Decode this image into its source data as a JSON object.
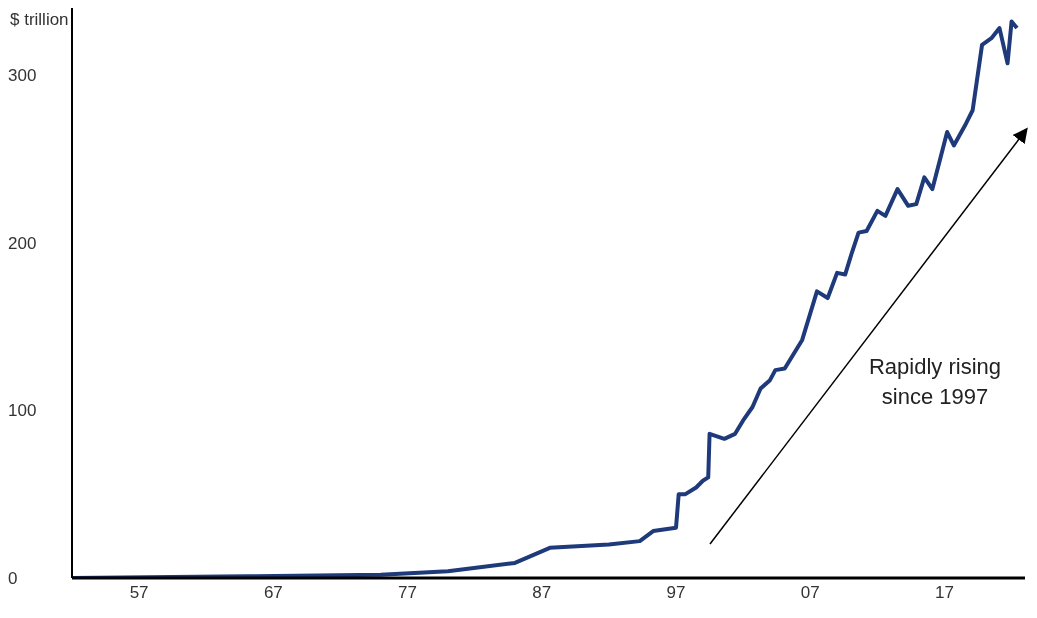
{
  "chart_data": {
    "type": "line",
    "ylabel": "$ trillion",
    "x": [
      1952,
      1965,
      1975,
      1980,
      1985,
      1987.6,
      1992,
      1994.3,
      1995.3,
      1997,
      1997.2,
      1997.7,
      1998.5,
      1999,
      1999.4,
      1999.5,
      2000.6,
      2001.4,
      2002,
      2002.7,
      2003.3,
      2004,
      2004.4,
      2005.1,
      2006.4,
      2007.5,
      2008.3,
      2009,
      2009.6,
      2010.1,
      2010.6,
      2011.2,
      2012,
      2012.6,
      2013.5,
      2014.3,
      2014.9,
      2015.5,
      2016.1,
      2017.2,
      2017.7,
      2018.6,
      2019.1,
      2019.8,
      2020.5,
      2021.1,
      2021.7,
      2022,
      2022.4
    ],
    "series": [
      {
        "color": "#1f3a7a",
        "values": [
          0,
          1,
          2,
          4,
          9,
          18,
          20,
          22,
          28,
          30,
          50,
          50,
          54,
          58,
          60,
          86,
          83,
          86,
          94,
          102,
          113,
          118,
          124,
          125,
          142,
          171,
          167,
          182,
          181,
          194,
          206,
          207,
          219,
          216,
          232,
          222,
          223,
          239,
          232,
          266,
          258,
          271,
          279,
          318,
          322,
          328,
          307,
          332,
          328
        ]
      }
    ],
    "xlim": [
      1952,
      2023
    ],
    "xticks": [
      {
        "value": 1957,
        "label": "57"
      },
      {
        "value": 1967,
        "label": "67"
      },
      {
        "value": 1977,
        "label": "77"
      },
      {
        "value": 1987,
        "label": "87"
      },
      {
        "value": 1997,
        "label": "97"
      },
      {
        "value": 2007,
        "label": "07"
      },
      {
        "value": 2017,
        "label": "17"
      }
    ],
    "ylim": [
      0,
      340
    ],
    "yticks": [
      0,
      100,
      200,
      300
    ],
    "grid": false,
    "legend": false,
    "marker": "none",
    "line_style": "solid",
    "annotations": [
      "Rapidly rising since 1997"
    ]
  }
}
